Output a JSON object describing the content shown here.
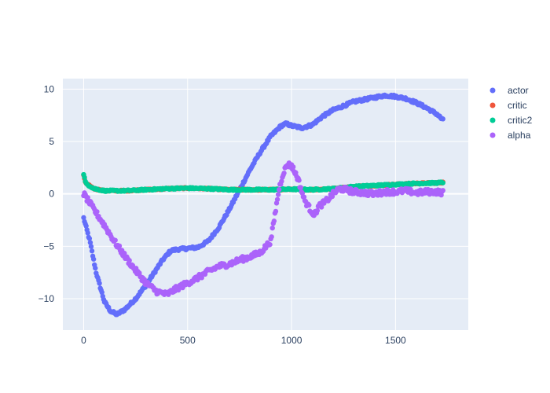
{
  "chart_data": {
    "type": "scatter",
    "title": "",
    "xlabel": "",
    "ylabel": "",
    "xlim": [
      -100,
      1850
    ],
    "ylim": [
      -13,
      11
    ],
    "x_ticks": [
      0,
      500,
      1000,
      1500
    ],
    "y_ticks": [
      -10,
      -5,
      0,
      5,
      10
    ],
    "x_tick_labels": [
      "0",
      "500",
      "1000",
      "1500"
    ],
    "y_tick_labels": [
      "−10",
      "−5",
      "0",
      "5",
      "10"
    ],
    "grid": true,
    "legend_position": "top-right",
    "plot_bgcolor": "#E5ECF6",
    "series": [
      {
        "name": "actor",
        "color": "#636EFA",
        "noise": 0.12,
        "points": [
          [
            0,
            -2.3
          ],
          [
            30,
            -4.5
          ],
          [
            60,
            -7.5
          ],
          [
            100,
            -10.3
          ],
          [
            130,
            -11.2
          ],
          [
            160,
            -11.5
          ],
          [
            200,
            -11.0
          ],
          [
            250,
            -10.0
          ],
          [
            300,
            -8.7
          ],
          [
            350,
            -7.2
          ],
          [
            380,
            -6.3
          ],
          [
            420,
            -5.4
          ],
          [
            450,
            -5.3
          ],
          [
            500,
            -5.2
          ],
          [
            550,
            -5.1
          ],
          [
            600,
            -4.5
          ],
          [
            650,
            -3.2
          ],
          [
            700,
            -1.5
          ],
          [
            750,
            0.4
          ],
          [
            800,
            2.3
          ],
          [
            850,
            4.0
          ],
          [
            900,
            5.5
          ],
          [
            950,
            6.5
          ],
          [
            975,
            6.7
          ],
          [
            1000,
            6.5
          ],
          [
            1050,
            6.3
          ],
          [
            1100,
            6.6
          ],
          [
            1150,
            7.4
          ],
          [
            1200,
            8.0
          ],
          [
            1300,
            8.8
          ],
          [
            1400,
            9.2
          ],
          [
            1450,
            9.4
          ],
          [
            1500,
            9.3
          ],
          [
            1550,
            9.1
          ],
          [
            1600,
            8.7
          ],
          [
            1650,
            8.2
          ],
          [
            1700,
            7.6
          ],
          [
            1730,
            7.0
          ]
        ]
      },
      {
        "name": "critic",
        "color": "#EF553B",
        "noise": 0.06,
        "points": [
          [
            0,
            1.8
          ],
          [
            10,
            1.0
          ],
          [
            50,
            0.5
          ],
          [
            100,
            0.3
          ],
          [
            200,
            0.3
          ],
          [
            300,
            0.4
          ],
          [
            400,
            0.5
          ],
          [
            500,
            0.55
          ],
          [
            600,
            0.5
          ],
          [
            700,
            0.4
          ],
          [
            800,
            0.4
          ],
          [
            900,
            0.4
          ],
          [
            1000,
            0.45
          ],
          [
            1100,
            0.4
          ],
          [
            1200,
            0.5
          ],
          [
            1300,
            0.7
          ],
          [
            1400,
            0.8
          ],
          [
            1500,
            0.9
          ],
          [
            1600,
            1.0
          ],
          [
            1700,
            1.05
          ],
          [
            1730,
            1.1
          ]
        ]
      },
      {
        "name": "critic2",
        "color": "#00CC96",
        "noise": 0.07,
        "points": [
          [
            0,
            1.9
          ],
          [
            10,
            1.0
          ],
          [
            50,
            0.5
          ],
          [
            100,
            0.3
          ],
          [
            200,
            0.3
          ],
          [
            300,
            0.4
          ],
          [
            400,
            0.5
          ],
          [
            500,
            0.55
          ],
          [
            600,
            0.5
          ],
          [
            700,
            0.4
          ],
          [
            800,
            0.4
          ],
          [
            900,
            0.4
          ],
          [
            1000,
            0.45
          ],
          [
            1100,
            0.4
          ],
          [
            1200,
            0.5
          ],
          [
            1300,
            0.7
          ],
          [
            1400,
            0.8
          ],
          [
            1500,
            0.9
          ],
          [
            1600,
            1.0
          ],
          [
            1700,
            1.05
          ],
          [
            1730,
            1.1
          ]
        ]
      },
      {
        "name": "alpha",
        "color": "#AB63FA",
        "noise": 0.25,
        "points": [
          [
            0,
            0.0
          ],
          [
            50,
            -1.5
          ],
          [
            100,
            -3.0
          ],
          [
            150,
            -4.6
          ],
          [
            200,
            -6.0
          ],
          [
            250,
            -7.3
          ],
          [
            300,
            -8.5
          ],
          [
            350,
            -9.3
          ],
          [
            400,
            -9.6
          ],
          [
            450,
            -9.0
          ],
          [
            500,
            -8.5
          ],
          [
            550,
            -8.0
          ],
          [
            600,
            -7.4
          ],
          [
            650,
            -6.9
          ],
          [
            700,
            -6.7
          ],
          [
            750,
            -6.3
          ],
          [
            800,
            -6.0
          ],
          [
            850,
            -5.6
          ],
          [
            900,
            -4.5
          ],
          [
            920,
            -2.0
          ],
          [
            940,
            0.5
          ],
          [
            960,
            2.0
          ],
          [
            980,
            2.8
          ],
          [
            1000,
            2.7
          ],
          [
            1030,
            1.5
          ],
          [
            1060,
            -0.5
          ],
          [
            1090,
            -1.5
          ],
          [
            1110,
            -2.0
          ],
          [
            1130,
            -1.2
          ],
          [
            1160,
            -0.8
          ],
          [
            1200,
            0.0
          ],
          [
            1230,
            0.5
          ],
          [
            1260,
            0.4
          ],
          [
            1300,
            0.2
          ],
          [
            1350,
            0.1
          ],
          [
            1400,
            0.0
          ],
          [
            1450,
            0.2
          ],
          [
            1500,
            0.2
          ],
          [
            1550,
            0.3
          ],
          [
            1600,
            0.1
          ],
          [
            1650,
            0.2
          ],
          [
            1700,
            0.2
          ],
          [
            1730,
            0.1
          ]
        ]
      }
    ]
  }
}
